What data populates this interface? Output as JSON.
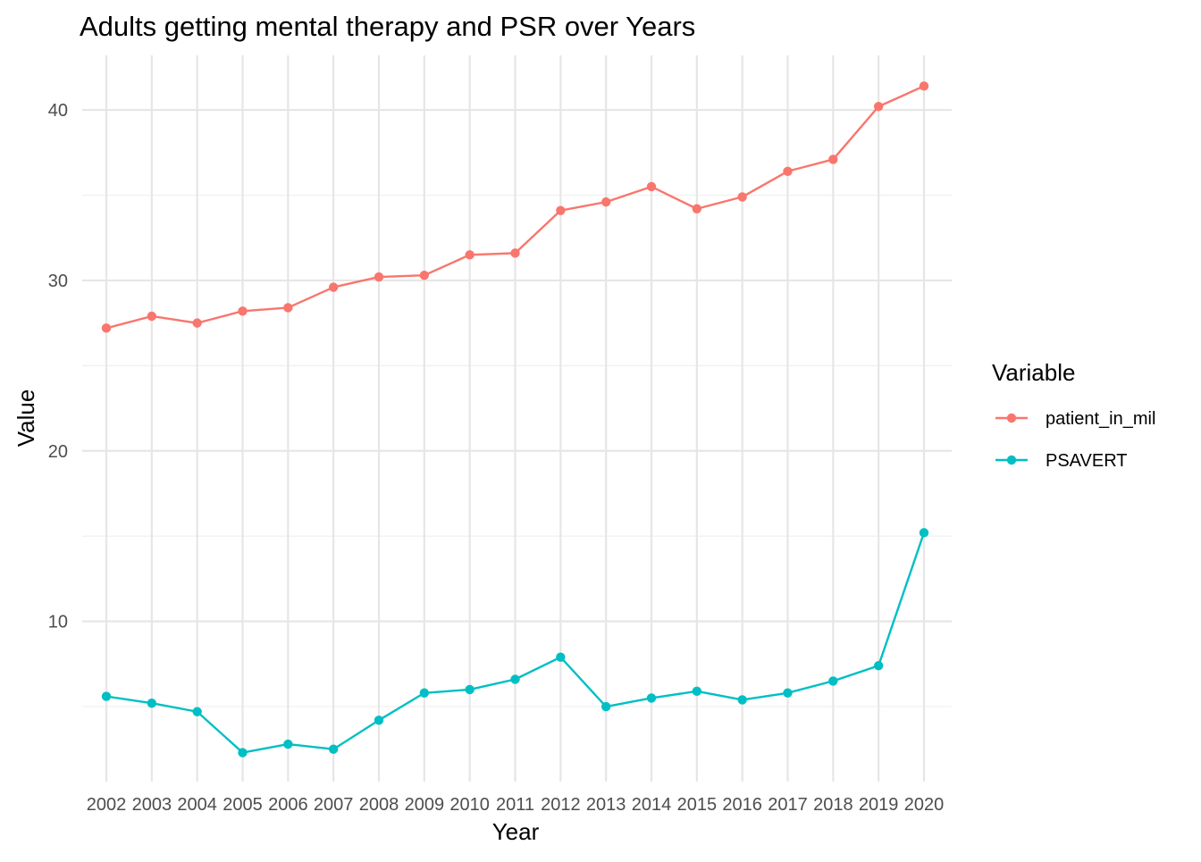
{
  "chart_data": {
    "type": "line",
    "title": "Adults getting mental therapy and PSR over Years",
    "xlabel": "Year",
    "ylabel": "Value",
    "categories": [
      "2002",
      "2003",
      "2004",
      "2005",
      "2006",
      "2007",
      "2008",
      "2009",
      "2010",
      "2011",
      "2012",
      "2013",
      "2014",
      "2015",
      "2016",
      "2017",
      "2018",
      "2019",
      "2020"
    ],
    "ylim": [
      0.6,
      43.2
    ],
    "y_ticks": [
      10,
      20,
      30,
      40
    ],
    "y_minor_ticks": [
      5,
      15,
      25,
      35
    ],
    "grid": true,
    "legend": {
      "title": "Variable",
      "position": "right"
    },
    "series": [
      {
        "name": "patient_in_mil",
        "color": "#F8766D",
        "values": [
          27.2,
          27.9,
          27.5,
          28.2,
          28.4,
          29.6,
          30.2,
          30.3,
          31.5,
          31.6,
          34.1,
          34.6,
          35.5,
          34.2,
          34.9,
          36.4,
          37.1,
          40.2,
          41.4
        ]
      },
      {
        "name": "PSAVERT",
        "color": "#00BFC4",
        "values": [
          5.6,
          5.2,
          4.7,
          2.3,
          2.8,
          2.5,
          4.2,
          5.8,
          6.0,
          6.6,
          7.9,
          5.0,
          5.5,
          5.9,
          5.4,
          5.8,
          6.5,
          7.4,
          15.2
        ]
      }
    ]
  }
}
